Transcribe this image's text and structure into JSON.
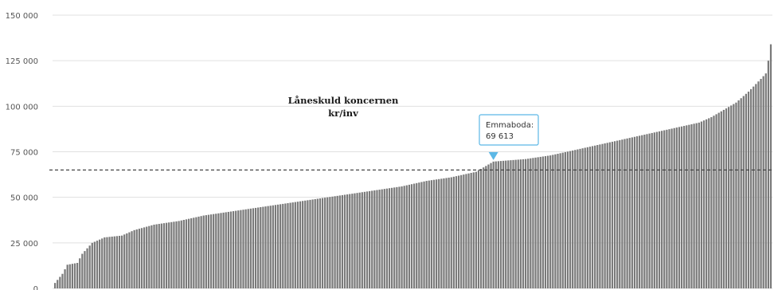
{
  "chart_data": {
    "type": "bar",
    "title": "Låneskuld koncernen",
    "subtitle": "kr/inv",
    "xlabel": "",
    "ylabel": "",
    "ylim": [
      0,
      150000
    ],
    "y_ticks": [
      0,
      25000,
      50000,
      75000,
      100000,
      125000,
      150000
    ],
    "y_tick_labels": [
      "0",
      "25 000",
      "50 000",
      "75 000",
      "100 000",
      "125 000",
      "150 000"
    ],
    "grid": true,
    "bar_count": 290,
    "reference_line": {
      "value": 65000,
      "style": "dashed"
    },
    "highlight": {
      "name": "Emmaboda:",
      "value_label": "69 613",
      "value": 69613,
      "rank": 177
    },
    "profile": [
      [
        0,
        3000
      ],
      [
        3,
        8000
      ],
      [
        5,
        13000
      ],
      [
        9,
        14000
      ],
      [
        11,
        19000
      ],
      [
        15,
        25000
      ],
      [
        20,
        28000
      ],
      [
        27,
        29000
      ],
      [
        32,
        32000
      ],
      [
        40,
        35000
      ],
      [
        50,
        37000
      ],
      [
        60,
        40000
      ],
      [
        70,
        42000
      ],
      [
        80,
        44000
      ],
      [
        90,
        46000
      ],
      [
        100,
        48000
      ],
      [
        110,
        50000
      ],
      [
        120,
        52000
      ],
      [
        130,
        54000
      ],
      [
        140,
        56000
      ],
      [
        150,
        59000
      ],
      [
        160,
        61000
      ],
      [
        170,
        64000
      ],
      [
        177,
        69613
      ],
      [
        190,
        71000
      ],
      [
        200,
        73000
      ],
      [
        210,
        76000
      ],
      [
        220,
        79000
      ],
      [
        230,
        82000
      ],
      [
        240,
        85000
      ],
      [
        250,
        88000
      ],
      [
        260,
        91000
      ],
      [
        265,
        94000
      ],
      [
        270,
        98000
      ],
      [
        275,
        102000
      ],
      [
        280,
        108000
      ],
      [
        285,
        115000
      ],
      [
        287,
        118000
      ],
      [
        288,
        125000
      ],
      [
        289,
        134000
      ]
    ],
    "colors": {
      "bar": "#7a7a7a",
      "bar_edge": "#ffffff",
      "grid": "#e0e0e0",
      "reference_line": "#444444",
      "tooltip_border": "#5cb8e6",
      "marker": "#5cb8e6"
    }
  }
}
